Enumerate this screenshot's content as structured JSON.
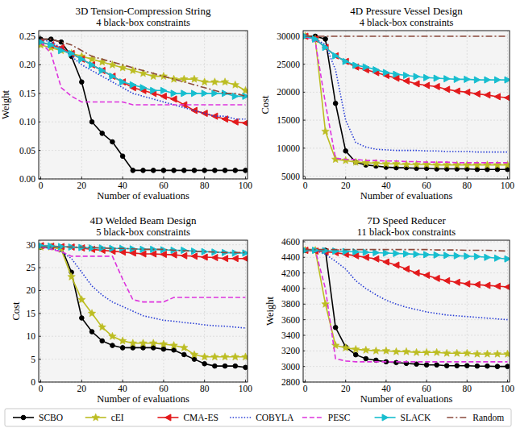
{
  "chart_data": [
    {
      "type": "line",
      "title": "3D Tension-Compression String",
      "subtitle": "4 black-box constraints",
      "x_label": "Number of evaluations",
      "y_label": "Weight",
      "x": [
        0,
        5,
        10,
        15,
        20,
        25,
        30,
        35,
        40,
        45,
        50,
        55,
        60,
        65,
        70,
        75,
        80,
        85,
        90,
        95,
        100
      ],
      "xlim": [
        -1,
        101
      ],
      "xticks": [
        0,
        20,
        40,
        60,
        80,
        100
      ],
      "ylim": [
        0,
        0.26
      ],
      "yticks": [
        {
          "value": 0,
          "label": "0.00"
        },
        {
          "value": 0.05,
          "label": "0.05"
        },
        {
          "value": 0.1,
          "label": "0.10"
        },
        {
          "value": 0.15,
          "label": "0.15"
        },
        {
          "value": 0.2,
          "label": "0.20"
        },
        {
          "value": 0.25,
          "label": "0.25"
        }
      ],
      "grid": true,
      "legend": "bottom",
      "series": [
        {
          "name": "SCBO",
          "color": "#000000",
          "marker": "circle",
          "line_style": "solid",
          "values": [
            0.245,
            0.245,
            0.24,
            0.215,
            0.17,
            0.1,
            0.08,
            0.065,
            0.04,
            0.015,
            0.015,
            0.015,
            0.015,
            0.015,
            0.015,
            0.015,
            0.015,
            0.015,
            0.015,
            0.015,
            0.015
          ]
        },
        {
          "name": "cEI",
          "color": "#bcbd22",
          "marker": "star",
          "line_style": "solid",
          "values": [
            0.235,
            0.23,
            0.225,
            0.22,
            0.215,
            0.21,
            0.205,
            0.2,
            0.195,
            0.19,
            0.185,
            0.18,
            0.18,
            0.175,
            0.175,
            0.175,
            0.17,
            0.17,
            0.17,
            0.165,
            0.155
          ]
        },
        {
          "name": "CMA-ES",
          "color": "#e31a1c",
          "marker": "triangle-left",
          "line_style": "solid",
          "values": [
            0.24,
            0.235,
            0.23,
            0.22,
            0.21,
            0.2,
            0.19,
            0.18,
            0.17,
            0.16,
            0.155,
            0.15,
            0.145,
            0.14,
            0.13,
            0.12,
            0.115,
            0.11,
            0.105,
            0.1,
            0.098
          ]
        },
        {
          "name": "COBYLA",
          "color": "#2a3fd6",
          "marker": "none",
          "line_style": "dotted",
          "values": [
            0.245,
            0.24,
            0.23,
            0.215,
            0.2,
            0.19,
            0.18,
            0.17,
            0.16,
            0.15,
            0.145,
            0.14,
            0.135,
            0.13,
            0.125,
            0.12,
            0.115,
            0.11,
            0.11,
            0.105,
            0.105
          ]
        },
        {
          "name": "PESC",
          "color": "#dd33dd",
          "marker": "none",
          "line_style": "dashed",
          "values": [
            0.24,
            0.22,
            0.16,
            0.145,
            0.135,
            0.135,
            0.135,
            0.135,
            0.135,
            0.13,
            0.13,
            0.13,
            0.13,
            0.13,
            0.13,
            0.13,
            0.13,
            0.13,
            0.13,
            0.13,
            0.13
          ]
        },
        {
          "name": "SLACK",
          "color": "#17becf",
          "marker": "triangle-right",
          "line_style": "solid",
          "values": [
            0.24,
            0.235,
            0.225,
            0.22,
            0.21,
            0.2,
            0.19,
            0.18,
            0.17,
            0.165,
            0.16,
            0.155,
            0.155,
            0.15,
            0.15,
            0.15,
            0.15,
            0.15,
            0.15,
            0.145,
            0.145
          ]
        },
        {
          "name": "Random",
          "color": "#8b4a3c",
          "marker": "none",
          "line_style": "dashdot",
          "values": [
            0.245,
            0.245,
            0.24,
            0.235,
            0.225,
            0.215,
            0.21,
            0.205,
            0.2,
            0.195,
            0.19,
            0.185,
            0.18,
            0.175,
            0.17,
            0.165,
            0.16,
            0.155,
            0.15,
            0.15,
            0.145
          ]
        }
      ]
    },
    {
      "type": "line",
      "title": "4D Pressure Vessel Design",
      "subtitle": "4 black-box constraints",
      "x_label": "Number of evaluations",
      "y_label": "Cost",
      "x": [
        0,
        5,
        10,
        15,
        20,
        25,
        30,
        35,
        40,
        45,
        50,
        55,
        60,
        65,
        70,
        75,
        80,
        85,
        90,
        95,
        100
      ],
      "xlim": [
        -1,
        101
      ],
      "xticks": [
        0,
        20,
        40,
        60,
        80,
        100
      ],
      "ylim": [
        4500,
        31000
      ],
      "yticks": [
        5000,
        10000,
        15000,
        20000,
        25000,
        30000
      ],
      "grid": true,
      "series": [
        {
          "color": "#000000",
          "marker": "circle",
          "line_style": "solid",
          "values": [
            30000,
            30000,
            29500,
            18000,
            9500,
            7500,
            7000,
            6800,
            6600,
            6500,
            6500,
            6400,
            6400,
            6300,
            6300,
            6300,
            6300,
            6200,
            6200,
            6200,
            6200
          ]
        },
        {
          "color": "#bcbd22",
          "marker": "star",
          "line_style": "solid",
          "values": [
            30000,
            29500,
            13000,
            8000,
            7800,
            7500,
            7400,
            7300,
            7200,
            7200,
            7100,
            7100,
            7100,
            7000,
            7000,
            7000,
            7000,
            7000,
            7000,
            7000,
            7000
          ]
        },
        {
          "color": "#e31a1c",
          "marker": "triangle-left",
          "line_style": "solid",
          "values": [
            30000,
            29500,
            28000,
            26500,
            25500,
            24500,
            24000,
            23500,
            23000,
            22500,
            22000,
            21500,
            21200,
            21000,
            20500,
            20200,
            20000,
            19700,
            19500,
            19200,
            19000
          ]
        },
        {
          "color": "#2a3fd6",
          "marker": "none",
          "line_style": "dotted",
          "values": [
            30000,
            29500,
            28500,
            24000,
            15000,
            11000,
            10200,
            9800,
            9700,
            9600,
            9600,
            9600,
            9500,
            9500,
            9400,
            9400,
            9400,
            9300,
            9300,
            9300,
            9300
          ]
        },
        {
          "color": "#dd33dd",
          "marker": "none",
          "line_style": "dashed",
          "values": [
            30000,
            29000,
            18000,
            8200,
            8000,
            8000,
            7800,
            7800,
            7700,
            7700,
            7600,
            7600,
            7500,
            7500,
            7500,
            7400,
            7400,
            7400,
            7400,
            7400,
            7400
          ]
        },
        {
          "color": "#17becf",
          "marker": "triangle-right",
          "line_style": "solid",
          "values": [
            30000,
            29500,
            28000,
            26500,
            25500,
            24800,
            24500,
            24000,
            23500,
            23200,
            23000,
            22800,
            22600,
            22500,
            22400,
            22300,
            22300,
            22200,
            22200,
            22200,
            22200
          ]
        },
        {
          "color": "#8b4a3c",
          "marker": "none",
          "line_style": "dashdot",
          "values": [
            30000,
            30000,
            30000,
            30000,
            30000,
            30000,
            30000,
            30000,
            30000,
            30000,
            30000,
            30000,
            30000,
            30000,
            30000,
            30000,
            30000,
            30000,
            30000,
            30000,
            30000
          ]
        }
      ]
    },
    {
      "type": "line",
      "title": "4D Welded Beam Design",
      "subtitle": "5 black-box constraints",
      "x_label": "Number of evaluations",
      "y_label": "Cost",
      "x": [
        0,
        5,
        10,
        15,
        20,
        25,
        30,
        35,
        40,
        45,
        50,
        55,
        60,
        65,
        70,
        75,
        80,
        85,
        90,
        95,
        100
      ],
      "xlim": [
        -1,
        101
      ],
      "xticks": [
        0,
        20,
        40,
        60,
        80,
        100
      ],
      "ylim": [
        0,
        31
      ],
      "yticks": [
        0,
        5,
        10,
        15,
        20,
        25,
        30
      ],
      "grid": true,
      "series": [
        {
          "color": "#000000",
          "marker": "circle",
          "line_style": "solid",
          "values": [
            29.5,
            29.5,
            29.5,
            24,
            14,
            11,
            9,
            8,
            7.5,
            7.5,
            7.5,
            7.5,
            7.2,
            7,
            6,
            5,
            4,
            3.5,
            3.5,
            3.5,
            3.2
          ]
        },
        {
          "color": "#bcbd22",
          "marker": "star",
          "line_style": "solid",
          "values": [
            29.5,
            29.5,
            29,
            23,
            18,
            15,
            12,
            10,
            9,
            8.5,
            8.5,
            8.5,
            8.3,
            8,
            7.5,
            6,
            5.5,
            5.5,
            5.5,
            5.5,
            5.5
          ]
        },
        {
          "color": "#e31a1c",
          "marker": "triangle-left",
          "line_style": "solid",
          "values": [
            29.8,
            29.7,
            29.6,
            29.5,
            29.3,
            29,
            28.8,
            28.6,
            28.4,
            28.2,
            28,
            28,
            27.9,
            27.8,
            27.6,
            27.5,
            27.3,
            27.2,
            27,
            27,
            27
          ]
        },
        {
          "color": "#2a3fd6",
          "marker": "none",
          "line_style": "dotted",
          "values": [
            29.5,
            29.2,
            28.5,
            27,
            24,
            21,
            19,
            17.5,
            16.5,
            15.5,
            14.5,
            14,
            13.5,
            13.3,
            13,
            12.8,
            12.5,
            12.3,
            12.2,
            12,
            11.8
          ]
        },
        {
          "color": "#dd33dd",
          "marker": "none",
          "line_style": "dashed",
          "values": [
            29.5,
            29,
            28.5,
            27.5,
            27.5,
            27.5,
            27.5,
            27.5,
            22.5,
            18,
            17.5,
            17.5,
            17.5,
            18.5,
            18.5,
            18.5,
            18.5,
            18.5,
            18.5,
            18.5,
            18.5
          ]
        },
        {
          "color": "#17becf",
          "marker": "triangle-right",
          "line_style": "solid",
          "values": [
            29.8,
            29.7,
            29.6,
            29.5,
            29.4,
            29.3,
            29.3,
            29.2,
            29.2,
            29.1,
            29,
            29,
            28.9,
            28.8,
            28.8,
            28.6,
            28.5,
            28.4,
            28.3,
            28.2,
            28.2
          ]
        },
        {
          "color": "#8b4a3c",
          "marker": "none",
          "line_style": "dashdot",
          "values": [
            29.5,
            29.5,
            29.5,
            29.5,
            29.5,
            29.4,
            29.3,
            29.2,
            29.2,
            29.1,
            29,
            29,
            29,
            28.8,
            28.7,
            28.6,
            28.5,
            28.4,
            28.3,
            28.3,
            28.3
          ]
        }
      ]
    },
    {
      "type": "line",
      "title": "7D Speed Reducer",
      "subtitle": "11 black-box constraints",
      "x_label": "Number of evaluations",
      "y_label": "Weight",
      "x": [
        0,
        5,
        10,
        15,
        20,
        25,
        30,
        35,
        40,
        45,
        50,
        55,
        60,
        65,
        70,
        75,
        80,
        85,
        90,
        95,
        100
      ],
      "xlim": [
        -1,
        101
      ],
      "xticks": [
        0,
        20,
        40,
        60,
        80,
        100
      ],
      "ylim": [
        2800,
        4620
      ],
      "yticks": [
        2800,
        3000,
        3200,
        3400,
        3600,
        3800,
        4000,
        4200,
        4400,
        4600
      ],
      "grid": true,
      "series": [
        {
          "color": "#000000",
          "marker": "circle",
          "line_style": "solid",
          "values": [
            4490,
            4490,
            4490,
            3500,
            3250,
            3150,
            3100,
            3080,
            3060,
            3050,
            3040,
            3030,
            3020,
            3020,
            3010,
            3010,
            3010,
            3005,
            3005,
            3000,
            3000
          ]
        },
        {
          "color": "#bcbd22",
          "marker": "star",
          "line_style": "solid",
          "values": [
            4490,
            4490,
            3800,
            3270,
            3240,
            3220,
            3210,
            3200,
            3200,
            3190,
            3190,
            3180,
            3180,
            3180,
            3170,
            3170,
            3170,
            3160,
            3160,
            3160,
            3160
          ]
        },
        {
          "color": "#e31a1c",
          "marker": "triangle-left",
          "line_style": "solid",
          "values": [
            4490,
            4480,
            4470,
            4460,
            4440,
            4420,
            4400,
            4380,
            4340,
            4300,
            4250,
            4200,
            4170,
            4130,
            4100,
            4080,
            4060,
            4050,
            4040,
            4030,
            4020
          ]
        },
        {
          "color": "#2a3fd6",
          "marker": "none",
          "line_style": "dotted",
          "values": [
            4490,
            4490,
            4440,
            4350,
            4250,
            4100,
            4000,
            3920,
            3850,
            3800,
            3760,
            3730,
            3700,
            3680,
            3660,
            3650,
            3640,
            3630,
            3620,
            3610,
            3600
          ]
        },
        {
          "color": "#dd33dd",
          "marker": "none",
          "line_style": "dashed",
          "values": [
            4490,
            4490,
            4000,
            3100,
            3070,
            3060,
            3060,
            3060,
            3060,
            3060,
            3060,
            3060,
            3060,
            3060,
            3060,
            3060,
            3060,
            3060,
            3060,
            3060,
            3060
          ]
        },
        {
          "color": "#17becf",
          "marker": "triangle-right",
          "line_style": "solid",
          "values": [
            4490,
            4490,
            4485,
            4480,
            4475,
            4470,
            4465,
            4460,
            4455,
            4450,
            4445,
            4440,
            4435,
            4430,
            4425,
            4420,
            4415,
            4410,
            4400,
            4390,
            4380
          ]
        },
        {
          "color": "#8b4a3c",
          "marker": "none",
          "line_style": "dashdot",
          "values": [
            4500,
            4500,
            4500,
            4500,
            4500,
            4500,
            4500,
            4500,
            4500,
            4500,
            4500,
            4500,
            4500,
            4495,
            4495,
            4495,
            4490,
            4490,
            4490,
            4485,
            4480
          ]
        }
      ]
    }
  ]
}
